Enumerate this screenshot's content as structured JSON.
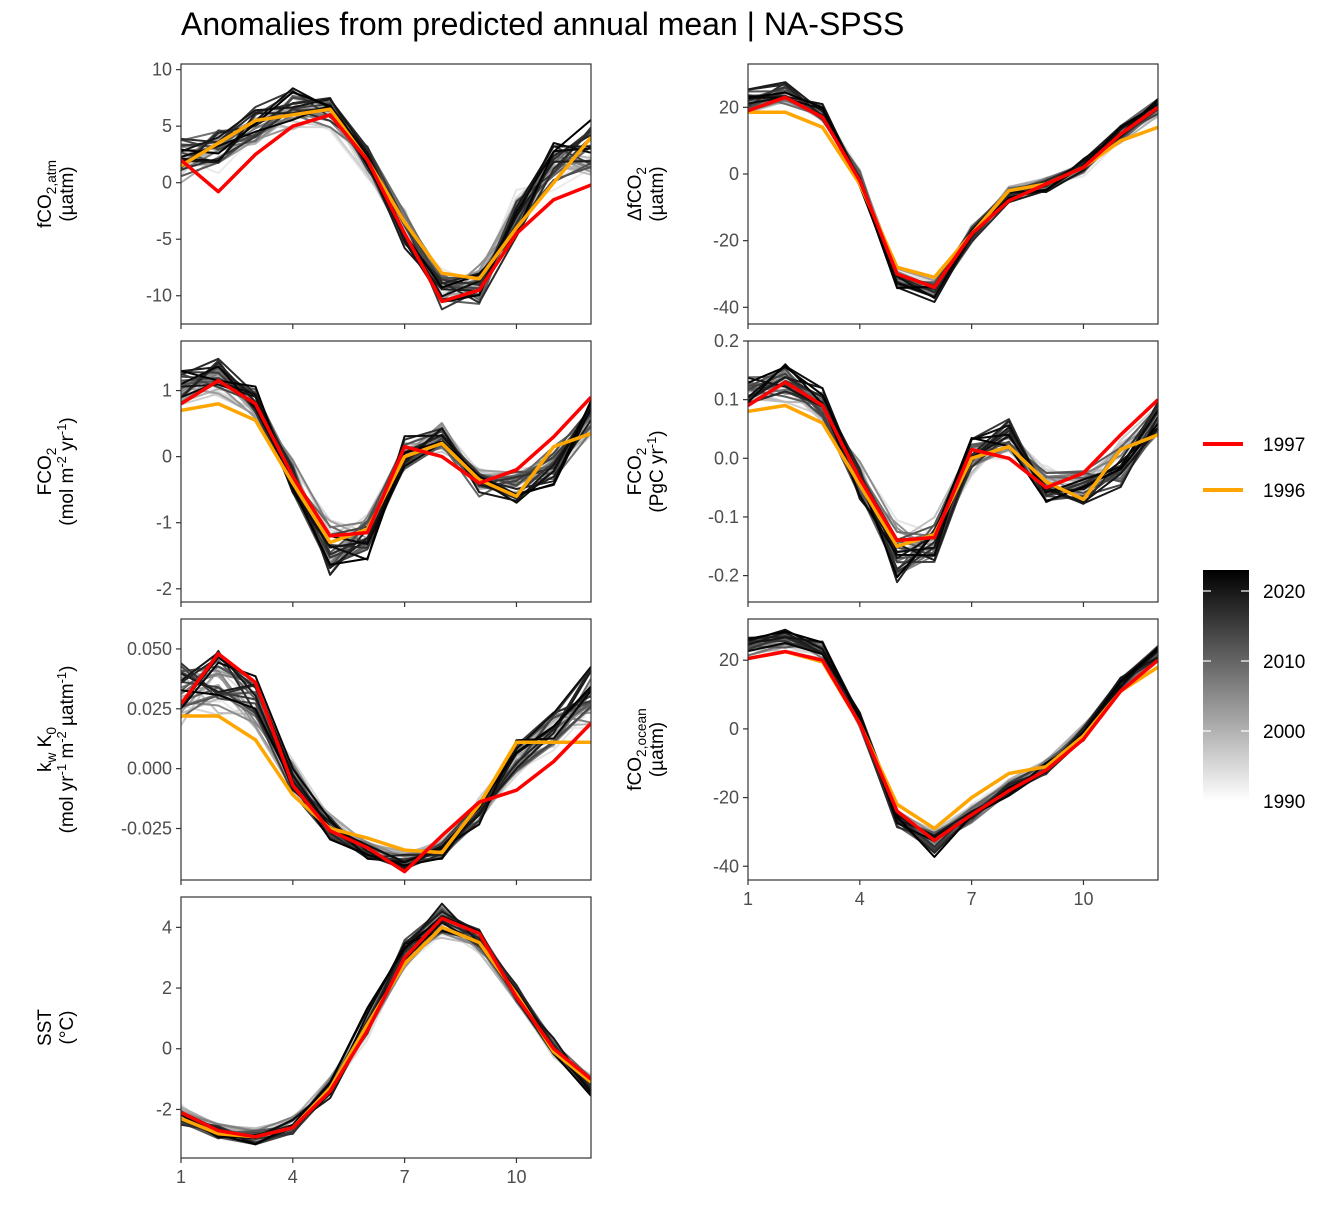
{
  "title": "Anomalies from predicted annual mean | NA-SPSS",
  "legend": {
    "highlight": [
      {
        "label": "1997",
        "color": "#ff0000"
      },
      {
        "label": "1996",
        "color": "#ffa500"
      }
    ],
    "colorbar": {
      "min": 1990,
      "max": 2023,
      "ticks": [
        "1990",
        "2000",
        "2010",
        "2020"
      ],
      "low_color": "#ffffff",
      "high_color": "#000000"
    }
  },
  "chart_data": [
    {
      "id": "fco2_atm",
      "type": "line",
      "ylabel_lines": [
        [
          "fCO",
          {
            "sub": "2,atm"
          }
        ],
        [
          "(µatm)"
        ]
      ],
      "ylim": [
        -12.5,
        10.5
      ],
      "yticks": [
        -10,
        -5,
        0,
        5,
        10
      ],
      "yticklabels": [
        "-10",
        "-5",
        "0",
        "5",
        "10"
      ],
      "x": [
        1,
        2,
        3,
        4,
        5,
        6,
        7,
        8,
        9,
        10,
        11,
        12
      ],
      "xticks": [
        1,
        4,
        7,
        10
      ],
      "series": [
        {
          "values": [
            2.0,
            -0.8,
            2.5,
            5.0,
            6.0,
            2.0,
            -4.5,
            -10.5,
            -9.5,
            -4.5,
            -1.5,
            -0.2
          ],
          "color": "#ff0000"
        },
        {
          "values": [
            1.5,
            3.5,
            5.5,
            6.0,
            6.5,
            2.0,
            -3.5,
            -8.0,
            -8.5,
            -4.0,
            0.0,
            4.0
          ],
          "color": "#ffa500"
        }
      ],
      "background_band": {
        "center": [
          2.0,
          3.0,
          5.0,
          6.5,
          6.0,
          2.0,
          -4.0,
          -9.5,
          -9.0,
          -3.0,
          1.5,
          3.0
        ],
        "spread": [
          2.2,
          2.2,
          1.8,
          1.8,
          1.5,
          1.5,
          1.8,
          1.8,
          2.0,
          2.2,
          2.0,
          2.5
        ]
      }
    },
    {
      "id": "dfco2",
      "type": "line",
      "ylabel_lines": [
        [
          "ΔfCO",
          {
            "sub": "2"
          }
        ],
        [
          "(µatm)"
        ]
      ],
      "ylim": [
        -45,
        33
      ],
      "yticks": [
        -40,
        -20,
        0,
        20
      ],
      "yticklabels": [
        "-40",
        "-20",
        "0",
        "20"
      ],
      "x": [
        1,
        2,
        3,
        4,
        5,
        6,
        7,
        8,
        9,
        10,
        11,
        12
      ],
      "xticks": [
        1,
        4,
        7,
        10
      ],
      "series": [
        {
          "values": [
            19.0,
            23.0,
            17.0,
            -2.0,
            -30.0,
            -34.0,
            -18.0,
            -8.0,
            -3.0,
            2.0,
            12.0,
            20.0
          ],
          "color": "#ff0000"
        },
        {
          "values": [
            18.5,
            18.5,
            14.0,
            -3.0,
            -28.0,
            -31.0,
            -18.0,
            -5.0,
            -3.0,
            2.0,
            10.0,
            14.0
          ],
          "color": "#ffa500"
        }
      ],
      "background_band": {
        "center": [
          22.0,
          24.0,
          18.0,
          -1.0,
          -31.0,
          -35.0,
          -18.0,
          -6.0,
          -3.0,
          2.0,
          12.0,
          20.0
        ],
        "spread": [
          4.0,
          4.0,
          3.0,
          2.5,
          3.0,
          4.0,
          3.0,
          2.5,
          2.5,
          2.5,
          3.0,
          3.0
        ]
      }
    },
    {
      "id": "fco2_flux_area",
      "type": "line",
      "ylabel_lines": [
        [
          "FCO",
          {
            "sub": "2"
          }
        ],
        [
          "(mol m",
          {
            "sup": "-2"
          },
          " yr",
          {
            "sup": "-1"
          },
          ")"
        ]
      ],
      "ylim": [
        -2.2,
        1.75
      ],
      "yticks": [
        -2,
        -1,
        0,
        1
      ],
      "yticklabels": [
        "-2",
        "-1",
        "0",
        "1"
      ],
      "x": [
        1,
        2,
        3,
        4,
        5,
        6,
        7,
        8,
        9,
        10,
        11,
        12
      ],
      "xticks": [
        1,
        4,
        7,
        10
      ],
      "series": [
        {
          "values": [
            0.8,
            1.15,
            0.8,
            -0.3,
            -1.2,
            -1.15,
            0.15,
            0.0,
            -0.4,
            -0.2,
            0.3,
            0.9
          ],
          "color": "#ff0000"
        },
        {
          "values": [
            0.7,
            0.8,
            0.55,
            -0.4,
            -1.3,
            -1.1,
            0.0,
            0.2,
            -0.35,
            -0.6,
            0.15,
            0.35
          ],
          "color": "#ffa500"
        }
      ],
      "background_band": {
        "center": [
          1.0,
          1.2,
          0.8,
          -0.3,
          -1.4,
          -1.2,
          0.0,
          0.3,
          -0.4,
          -0.4,
          -0.1,
          0.6
        ],
        "spread": [
          0.3,
          0.3,
          0.25,
          0.3,
          0.5,
          0.35,
          0.3,
          0.3,
          0.25,
          0.3,
          0.35,
          0.3
        ]
      }
    },
    {
      "id": "fco2_flux_total",
      "type": "line",
      "ylabel_lines": [
        [
          "FCO",
          {
            "sub": "2"
          }
        ],
        [
          "(PgC yr",
          {
            "sup": "-1"
          },
          ")"
        ]
      ],
      "ylim": [
        -0.245,
        0.2
      ],
      "yticks": [
        -0.2,
        -0.1,
        0.0,
        0.1,
        0.2
      ],
      "yticklabels": [
        "-0.2",
        "-0.1",
        "0.0",
        "0.1",
        "0.2"
      ],
      "x": [
        1,
        2,
        3,
        4,
        5,
        6,
        7,
        8,
        9,
        10,
        11,
        12
      ],
      "xticks": [
        1,
        4,
        7,
        10
      ],
      "series": [
        {
          "values": [
            0.09,
            0.13,
            0.09,
            -0.035,
            -0.14,
            -0.135,
            0.015,
            0.0,
            -0.05,
            -0.025,
            0.04,
            0.1
          ],
          "color": "#ff0000"
        },
        {
          "values": [
            0.08,
            0.09,
            0.06,
            -0.045,
            -0.15,
            -0.13,
            0.0,
            0.02,
            -0.04,
            -0.07,
            0.015,
            0.04
          ],
          "color": "#ffa500"
        }
      ],
      "background_band": {
        "center": [
          0.11,
          0.13,
          0.09,
          -0.035,
          -0.16,
          -0.14,
          0.0,
          0.035,
          -0.045,
          -0.045,
          -0.01,
          0.07
        ],
        "spread": [
          0.035,
          0.035,
          0.03,
          0.035,
          0.055,
          0.04,
          0.035,
          0.035,
          0.03,
          0.035,
          0.04,
          0.035
        ]
      }
    },
    {
      "id": "kw_k0",
      "type": "line",
      "ylabel_lines": [
        [
          "k",
          {
            "sub": "w"
          },
          " K",
          {
            "sub": "0"
          }
        ],
        [
          "(mol yr",
          {
            "sup": "-1"
          },
          " m",
          {
            "sup": "-2"
          },
          " µatm",
          {
            "sup": "-1"
          },
          ")"
        ]
      ],
      "ylim": [
        -0.0465,
        0.0625
      ],
      "yticks": [
        -0.025,
        0.0,
        0.025,
        0.05
      ],
      "yticklabels": [
        "-0.025",
        "0.000",
        "0.025",
        "0.050"
      ],
      "x": [
        1,
        2,
        3,
        4,
        5,
        6,
        7,
        8,
        9,
        10,
        11,
        12
      ],
      "xticks": [
        1,
        4,
        7,
        10
      ],
      "series": [
        {
          "values": [
            0.027,
            0.048,
            0.036,
            -0.007,
            -0.026,
            -0.033,
            -0.043,
            -0.028,
            -0.014,
            -0.009,
            0.003,
            0.019
          ],
          "color": "#ff0000"
        },
        {
          "values": [
            0.022,
            0.022,
            0.012,
            -0.011,
            -0.025,
            -0.029,
            -0.034,
            -0.035,
            -0.015,
            0.011,
            0.011,
            0.011
          ],
          "color": "#ffa500"
        }
      ],
      "background_band": {
        "center": [
          0.032,
          0.036,
          0.028,
          -0.004,
          -0.024,
          -0.034,
          -0.038,
          -0.034,
          -0.018,
          0.004,
          0.016,
          0.03
        ],
        "spread": [
          0.014,
          0.014,
          0.012,
          0.008,
          0.006,
          0.004,
          0.004,
          0.005,
          0.006,
          0.008,
          0.01,
          0.014
        ]
      }
    },
    {
      "id": "fco2_ocean",
      "type": "line",
      "ylabel_lines": [
        [
          "fCO",
          {
            "sub": "2,ocean"
          }
        ],
        [
          "(µatm)"
        ]
      ],
      "ylim": [
        -44,
        32
      ],
      "yticks": [
        -40,
        -20,
        0,
        20
      ],
      "yticklabels": [
        "-40",
        "-20",
        "0",
        "20"
      ],
      "x": [
        1,
        2,
        3,
        4,
        5,
        6,
        7,
        8,
        9,
        10,
        11,
        12
      ],
      "xticks": [
        1,
        4,
        7,
        10
      ],
      "xticklabels": [
        "1",
        "4",
        "7",
        "10"
      ],
      "series": [
        {
          "values": [
            20.5,
            22.5,
            20.0,
            1.5,
            -24.0,
            -32.5,
            -25.0,
            -18.0,
            -12.0,
            -3.0,
            11.0,
            20.0
          ],
          "color": "#ff0000"
        },
        {
          "values": [
            20.5,
            22.5,
            19.5,
            1.5,
            -22.0,
            -29.0,
            -20.0,
            -13.0,
            -11.0,
            -2.0,
            11.0,
            18.0
          ],
          "color": "#ffa500"
        }
      ],
      "background_band": {
        "center": [
          24.0,
          26.0,
          23.0,
          2.5,
          -26.0,
          -33.0,
          -25.0,
          -17.0,
          -11.0,
          -1.0,
          13.0,
          22.0
        ],
        "spread": [
          3.5,
          3.5,
          3.0,
          2.5,
          3.0,
          4.0,
          3.0,
          2.5,
          2.5,
          2.5,
          2.5,
          2.5
        ]
      }
    },
    {
      "id": "sst",
      "type": "line",
      "ylabel_lines": [
        [
          "SST"
        ],
        [
          "(°C)"
        ]
      ],
      "ylim": [
        -3.6,
        5.0
      ],
      "yticks": [
        -2,
        0,
        2,
        4
      ],
      "yticklabels": [
        "-2",
        "0",
        "2",
        "4"
      ],
      "x": [
        1,
        2,
        3,
        4,
        5,
        6,
        7,
        8,
        9,
        10,
        11,
        12
      ],
      "xticks": [
        1,
        4,
        7,
        10
      ],
      "xticklabels": [
        "1",
        "4",
        "7",
        "10"
      ],
      "series": [
        {
          "values": [
            -2.1,
            -2.7,
            -2.9,
            -2.6,
            -1.4,
            0.6,
            3.0,
            4.3,
            3.8,
            1.7,
            0.0,
            -1.0
          ],
          "color": "#ff0000"
        },
        {
          "values": [
            -2.3,
            -2.8,
            -2.9,
            -2.6,
            -1.3,
            0.8,
            2.8,
            4.0,
            3.5,
            1.8,
            -0.1,
            -1.1
          ],
          "color": "#ffa500"
        }
      ],
      "background_band": {
        "center": [
          -2.2,
          -2.7,
          -2.9,
          -2.5,
          -1.3,
          0.8,
          3.2,
          4.2,
          3.6,
          1.8,
          0.0,
          -1.2
        ],
        "spread": [
          0.35,
          0.3,
          0.3,
          0.35,
          0.4,
          0.5,
          0.6,
          0.6,
          0.5,
          0.4,
          0.35,
          0.35
        ]
      }
    }
  ]
}
